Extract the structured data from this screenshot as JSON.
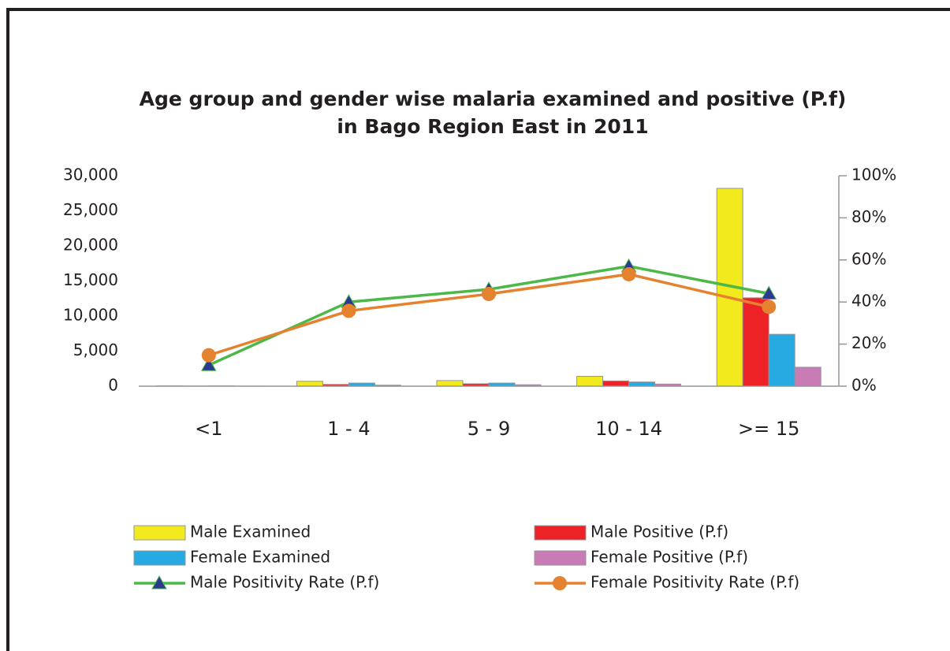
{
  "chart_data": {
    "type": "bar",
    "title": [
      "Age group and gender wise malaria examined and positive (P.f)",
      "in Bago Region East in 2011"
    ],
    "categories": [
      "<1",
      "1 - 4",
      "5 - 9",
      "10 - 14",
      ">= 15"
    ],
    "series": [
      {
        "name": "Male Examined",
        "color": "#f2ea1c",
        "values": [
          50,
          700,
          800,
          1400,
          28200
        ]
      },
      {
        "name": "Male Positive (P.f)",
        "color": "#ec2227",
        "values": [
          20,
          250,
          350,
          750,
          12600
        ]
      },
      {
        "name": "Female Examined",
        "color": "#27aae1",
        "values": [
          40,
          450,
          450,
          600,
          7400
        ]
      },
      {
        "name": "Female Positive (P.f)",
        "color": "#c87bb4",
        "values": [
          10,
          150,
          200,
          300,
          2700
        ]
      },
      {
        "name": "Male Positivity Rate (P.f)",
        "type": "line",
        "marker": "triangle",
        "color": "#4bb848",
        "marker_color": "#2b3990",
        "axis": "y2",
        "values": [
          10,
          40,
          46,
          57,
          44
        ]
      },
      {
        "name": "Female Positivity Rate (P.f)",
        "type": "line",
        "marker": "circle",
        "color": "#e5822f",
        "marker_color": "#e5822f",
        "axis": "y2",
        "values": [
          14.7,
          35.8,
          43.8,
          53.2,
          37.7
        ]
      }
    ],
    "ylim": [
      0,
      30000
    ],
    "yticks": [
      {
        "value": 0,
        "label": "0"
      },
      {
        "value": 5000,
        "label": "5,000"
      },
      {
        "value": 10000,
        "label": "10,000"
      },
      {
        "value": 15000,
        "label": "15,000"
      },
      {
        "value": 20000,
        "label": "20,000"
      },
      {
        "value": 25000,
        "label": "25,000"
      },
      {
        "value": 30000,
        "label": "30,000"
      }
    ],
    "y2lim": [
      0,
      100
    ],
    "y2ticks": [
      {
        "value": 0,
        "label": "0%"
      },
      {
        "value": 20,
        "label": "20%"
      },
      {
        "value": 40,
        "label": "40%"
      },
      {
        "value": 60,
        "label": "60%"
      },
      {
        "value": 80,
        "label": "80%"
      },
      {
        "value": 100,
        "label": "100%"
      }
    ]
  }
}
